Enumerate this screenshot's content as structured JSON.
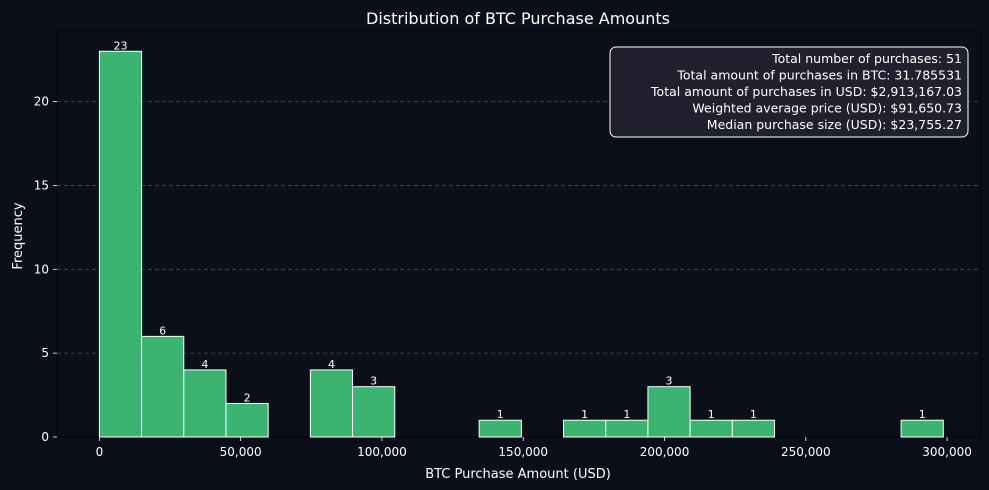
{
  "chart_data": {
    "type": "bar",
    "title": "Distribution of BTC Purchase Amounts",
    "xlabel": "BTC Purchase Amount (USD)",
    "ylabel": "Frequency",
    "xlim": [
      -15000,
      312000
    ],
    "ylim": [
      0,
      24.15
    ],
    "x_ticks": [
      0,
      50000,
      100000,
      150000,
      200000,
      250000,
      300000
    ],
    "x_tick_labels": [
      "0",
      "50,000",
      "100,000",
      "150,000",
      "200,000",
      "250,000",
      "300,000"
    ],
    "y_ticks": [
      0,
      5,
      10,
      15,
      20
    ],
    "y_tick_labels": [
      "0",
      "5",
      "10",
      "15",
      "20"
    ],
    "bin_edges": [
      0,
      14933,
      29866,
      44799,
      59732,
      74665,
      89598,
      104531,
      119464,
      134397,
      149330,
      164263,
      179196,
      194129,
      209062,
      223995,
      238928,
      253861,
      268794,
      283727,
      298660
    ],
    "counts": [
      23,
      6,
      4,
      2,
      0,
      4,
      3,
      0,
      0,
      1,
      0,
      1,
      1,
      3,
      1,
      1,
      0,
      0,
      0,
      1
    ],
    "grid": "y",
    "bar_color": "#3cb371",
    "edge_color": "#ffffff",
    "background": "#0b0f19",
    "text_color": "#ffffff",
    "grid_color": "#4a4e5a"
  },
  "stats_box": {
    "placement": "top-right",
    "background": "#20202f",
    "lines": [
      "Total number of purchases: 51",
      "Total amount of purchases in BTC: 31.785531",
      "Total amount of purchases in USD: $2,913,167.03",
      "Weighted average price (USD): $91,650.73",
      "Median purchase size (USD): $23,755.27"
    ]
  }
}
